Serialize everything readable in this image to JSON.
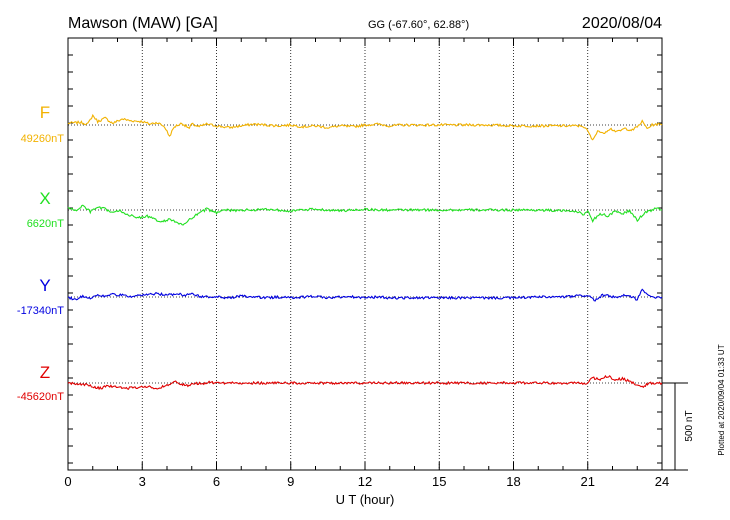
{
  "header": {
    "station": "Mawson (MAW)  [GA]",
    "coords": "GG (-67.60°,  62.88°)",
    "date": "2020/08/04"
  },
  "footer": {
    "plotted": "Plotted at 2020/09/04 01:33 UT"
  },
  "chart_data": {
    "type": "line",
    "xlabel": "U T (hour)",
    "xlim": [
      0,
      24
    ],
    "xticks": [
      "0",
      "3",
      "6",
      "9",
      "12",
      "15",
      "18",
      "21",
      "24"
    ],
    "grid": true,
    "scale_bar": {
      "label": "500 nT",
      "value_nT": 500
    },
    "series": [
      {
        "name": "F",
        "baseline_label": "49260nT",
        "color": "#f2b200",
        "points": [
          [
            0,
            10
          ],
          [
            0.5,
            15
          ],
          [
            0.8,
            5
          ],
          [
            1.0,
            55
          ],
          [
            1.2,
            20
          ],
          [
            1.5,
            40
          ],
          [
            1.8,
            10
          ],
          [
            2.2,
            35
          ],
          [
            2.5,
            25
          ],
          [
            3.0,
            20
          ],
          [
            3.3,
            5
          ],
          [
            3.6,
            15
          ],
          [
            3.9,
            -10
          ],
          [
            4.1,
            -65
          ],
          [
            4.3,
            -10
          ],
          [
            4.6,
            10
          ],
          [
            4.9,
            -20
          ],
          [
            5.0,
            5
          ],
          [
            5.3,
            -10
          ],
          [
            5.6,
            5
          ],
          [
            6.0,
            -5
          ],
          [
            6.5,
            -15
          ],
          [
            7.0,
            -5
          ],
          [
            7.5,
            5
          ],
          [
            8.0,
            0
          ],
          [
            8.5,
            -5
          ],
          [
            9.0,
            0
          ],
          [
            9.5,
            -10
          ],
          [
            10.0,
            -5
          ],
          [
            10.5,
            -15
          ],
          [
            11.0,
            -5
          ],
          [
            11.5,
            -10
          ],
          [
            12.0,
            0
          ],
          [
            12.5,
            5
          ],
          [
            13.0,
            -5
          ],
          [
            13.5,
            0
          ],
          [
            14.0,
            0
          ],
          [
            15.0,
            0
          ],
          [
            16.0,
            0
          ],
          [
            17.0,
            0
          ],
          [
            18.0,
            -5
          ],
          [
            19.0,
            -5
          ],
          [
            20.0,
            -5
          ],
          [
            20.8,
            -5
          ],
          [
            21.0,
            -35
          ],
          [
            21.2,
            -90
          ],
          [
            21.4,
            -30
          ],
          [
            21.6,
            -50
          ],
          [
            21.9,
            -20
          ],
          [
            22.2,
            -40
          ],
          [
            22.5,
            -20
          ],
          [
            22.8,
            -30
          ],
          [
            23.0,
            -10
          ],
          [
            23.2,
            20
          ],
          [
            23.4,
            -20
          ],
          [
            23.6,
            0
          ],
          [
            23.8,
            5
          ],
          [
            24.0,
            0
          ]
        ]
      },
      {
        "name": "X",
        "baseline_label": "6620nT",
        "color": "#22e022",
        "points": [
          [
            0,
            15
          ],
          [
            0.3,
            -5
          ],
          [
            0.6,
            25
          ],
          [
            0.9,
            -10
          ],
          [
            1.2,
            15
          ],
          [
            1.5,
            5
          ],
          [
            1.8,
            -15
          ],
          [
            2.1,
            -5
          ],
          [
            2.4,
            -25
          ],
          [
            2.8,
            -45
          ],
          [
            3.2,
            -35
          ],
          [
            3.5,
            -55
          ],
          [
            3.8,
            -70
          ],
          [
            4.1,
            -50
          ],
          [
            4.4,
            -75
          ],
          [
            4.7,
            -85
          ],
          [
            5.0,
            -45
          ],
          [
            5.3,
            -20
          ],
          [
            5.6,
            5
          ],
          [
            6.0,
            -15
          ],
          [
            6.3,
            5
          ],
          [
            6.7,
            -5
          ],
          [
            7.0,
            0
          ],
          [
            7.5,
            0
          ],
          [
            8.0,
            5
          ],
          [
            8.5,
            0
          ],
          [
            9.0,
            -5
          ],
          [
            9.5,
            0
          ],
          [
            10.0,
            5
          ],
          [
            10.5,
            0
          ],
          [
            11.0,
            -5
          ],
          [
            11.5,
            0
          ],
          [
            12.0,
            5
          ],
          [
            12.5,
            0
          ],
          [
            13.0,
            0
          ],
          [
            14.0,
            0
          ],
          [
            15.0,
            0
          ],
          [
            16.0,
            0
          ],
          [
            17.0,
            0
          ],
          [
            18.0,
            0
          ],
          [
            19.0,
            0
          ],
          [
            20.0,
            -5
          ],
          [
            20.5,
            -5
          ],
          [
            20.8,
            -25
          ],
          [
            21.0,
            -10
          ],
          [
            21.2,
            -60
          ],
          [
            21.5,
            -20
          ],
          [
            21.8,
            -35
          ],
          [
            22.1,
            -10
          ],
          [
            22.4,
            -20
          ],
          [
            22.7,
            -5
          ],
          [
            23.0,
            -60
          ],
          [
            23.3,
            -15
          ],
          [
            23.6,
            0
          ],
          [
            23.8,
            10
          ],
          [
            24.0,
            0
          ]
        ]
      },
      {
        "name": "Y",
        "baseline_label": "-17340nT",
        "color": "#0000e0",
        "points": [
          [
            0,
            0
          ],
          [
            0.3,
            -15
          ],
          [
            0.6,
            5
          ],
          [
            0.9,
            -5
          ],
          [
            1.2,
            10
          ],
          [
            1.5,
            5
          ],
          [
            1.8,
            15
          ],
          [
            2.2,
            10
          ],
          [
            2.6,
            0
          ],
          [
            3.0,
            10
          ],
          [
            3.3,
            15
          ],
          [
            3.6,
            20
          ],
          [
            4.0,
            10
          ],
          [
            4.4,
            20
          ],
          [
            4.7,
            10
          ],
          [
            5.0,
            20
          ],
          [
            5.3,
            5
          ],
          [
            5.6,
            0
          ],
          [
            6.0,
            0
          ],
          [
            6.5,
            -5
          ],
          [
            7.0,
            5
          ],
          [
            7.5,
            0
          ],
          [
            8.0,
            -5
          ],
          [
            8.5,
            0
          ],
          [
            9.0,
            -5
          ],
          [
            9.5,
            0
          ],
          [
            10.0,
            5
          ],
          [
            10.5,
            -5
          ],
          [
            11.0,
            0
          ],
          [
            11.5,
            0
          ],
          [
            12.0,
            -5
          ],
          [
            12.5,
            0
          ],
          [
            13.0,
            -5
          ],
          [
            14.0,
            -5
          ],
          [
            15.0,
            -5
          ],
          [
            16.0,
            -5
          ],
          [
            17.0,
            -5
          ],
          [
            18.0,
            -5
          ],
          [
            19.0,
            0
          ],
          [
            20.0,
            0
          ],
          [
            20.5,
            5
          ],
          [
            21.0,
            10
          ],
          [
            21.3,
            -20
          ],
          [
            21.6,
            10
          ],
          [
            21.9,
            5
          ],
          [
            22.2,
            -5
          ],
          [
            22.5,
            10
          ],
          [
            22.8,
            0
          ],
          [
            23.0,
            -15
          ],
          [
            23.2,
            50
          ],
          [
            23.4,
            10
          ],
          [
            23.6,
            0
          ],
          [
            24.0,
            0
          ]
        ]
      },
      {
        "name": "Z",
        "baseline_label": "-45620nT",
        "color": "#e00000",
        "points": [
          [
            0,
            0
          ],
          [
            0.4,
            -5
          ],
          [
            0.8,
            -10
          ],
          [
            1.0,
            -25
          ],
          [
            1.3,
            -30
          ],
          [
            1.6,
            -15
          ],
          [
            2.0,
            -25
          ],
          [
            2.4,
            -30
          ],
          [
            2.8,
            -25
          ],
          [
            3.2,
            -20
          ],
          [
            3.6,
            -30
          ],
          [
            4.0,
            -15
          ],
          [
            4.3,
            15
          ],
          [
            4.5,
            -5
          ],
          [
            4.8,
            -15
          ],
          [
            5.1,
            0
          ],
          [
            5.4,
            -5
          ],
          [
            5.7,
            5
          ],
          [
            6.0,
            0
          ],
          [
            7.0,
            0
          ],
          [
            8.0,
            0
          ],
          [
            9.0,
            0
          ],
          [
            10.0,
            0
          ],
          [
            11.0,
            0
          ],
          [
            12.0,
            0
          ],
          [
            13.0,
            0
          ],
          [
            14.0,
            0
          ],
          [
            15.0,
            0
          ],
          [
            16.0,
            0
          ],
          [
            17.0,
            0
          ],
          [
            18.0,
            0
          ],
          [
            19.0,
            0
          ],
          [
            20.0,
            0
          ],
          [
            20.5,
            0
          ],
          [
            20.8,
            -5
          ],
          [
            21.0,
            0
          ],
          [
            21.2,
            30
          ],
          [
            21.5,
            20
          ],
          [
            21.8,
            40
          ],
          [
            22.1,
            20
          ],
          [
            22.4,
            25
          ],
          [
            22.7,
            10
          ],
          [
            23.0,
            -10
          ],
          [
            23.2,
            -25
          ],
          [
            23.5,
            0
          ],
          [
            23.8,
            0
          ],
          [
            24.0,
            0
          ]
        ]
      }
    ]
  }
}
